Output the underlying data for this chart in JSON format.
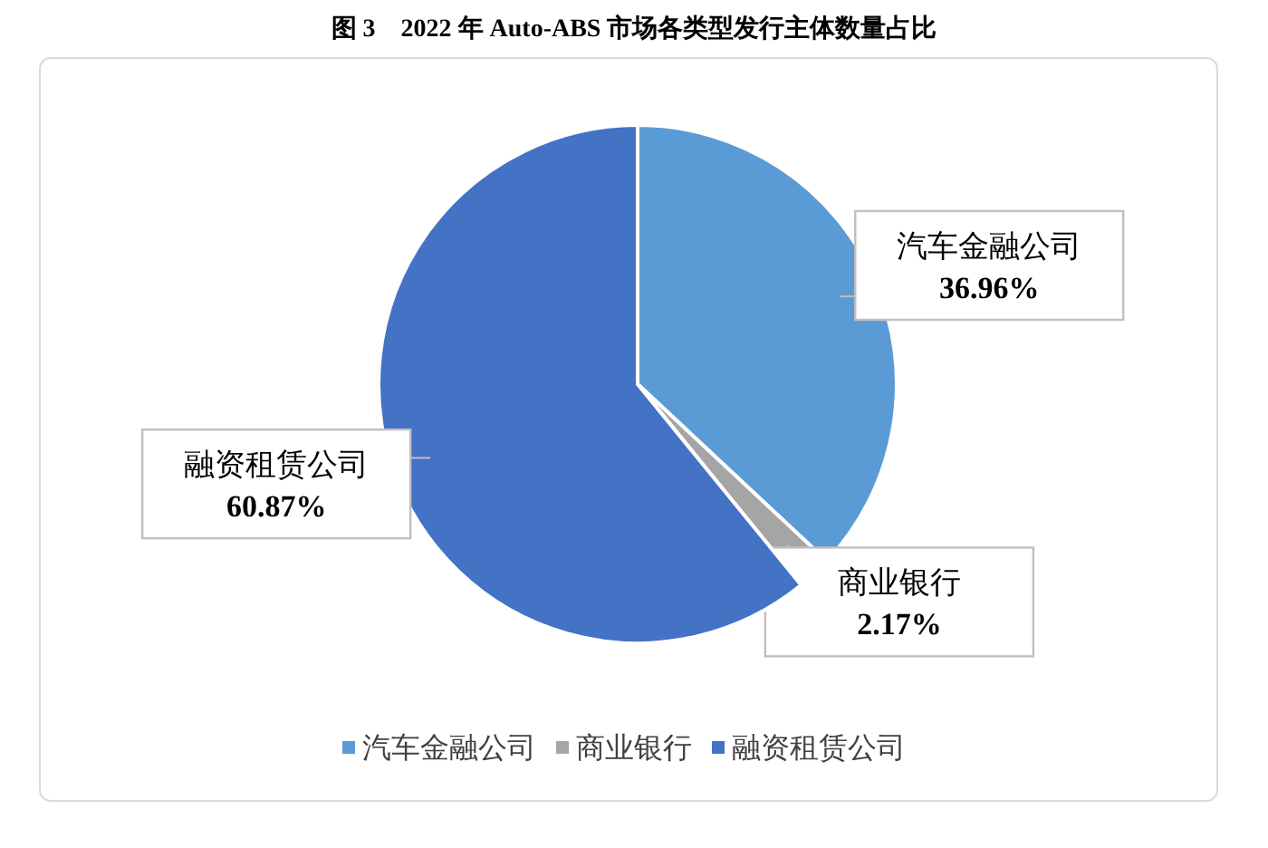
{
  "chart_data": {
    "type": "pie",
    "title": "图 3　2022 年 Auto-ABS 市场各类型发行主体数量占比",
    "categories": [
      "汽车金融公司",
      "商业银行",
      "融资租赁公司"
    ],
    "values": [
      36.96,
      2.17,
      60.87
    ],
    "colors": [
      "#5b9bd5",
      "#a5a5a5",
      "#4472c4"
    ],
    "value_labels": [
      "36.96%",
      "2.17%",
      "60.87%"
    ],
    "legend": "bottom"
  }
}
